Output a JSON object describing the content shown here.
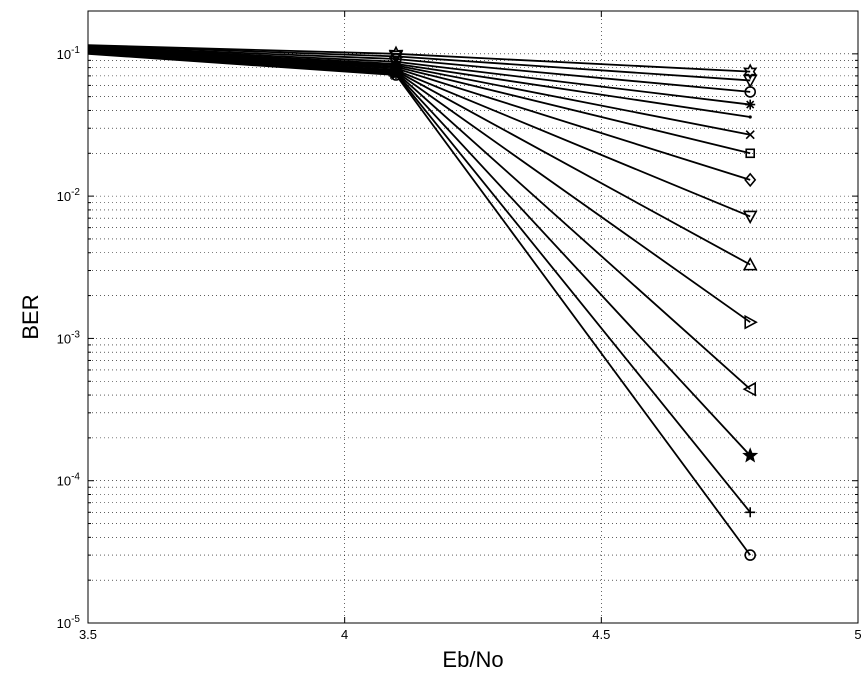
{
  "chart_data": {
    "type": "line",
    "title": "",
    "xlabel": "Eb/No",
    "ylabel": "BER",
    "xlim": [
      3.5,
      5
    ],
    "ylim": [
      1e-05,
      0.2
    ],
    "yscale": "log",
    "grid": true,
    "x_ticks": [
      {
        "value": 3.5,
        "label": "3.5"
      },
      {
        "value": 4,
        "label": "4"
      },
      {
        "value": 4.5,
        "label": "4.5"
      },
      {
        "value": 5,
        "label": "5"
      }
    ],
    "y_ticks": [
      {
        "value": 1e-05,
        "base": "10",
        "exp": "-5"
      },
      {
        "value": 0.0001,
        "base": "10",
        "exp": "-4"
      },
      {
        "value": 0.001,
        "base": "10",
        "exp": "-3"
      },
      {
        "value": 0.01,
        "base": "10",
        "exp": "-2"
      },
      {
        "value": 0.1,
        "base": "10",
        "exp": "-1"
      }
    ],
    "line_color": "#000000",
    "series": [
      {
        "marker": "hexagram",
        "x": [
          3.5,
          4.1,
          4.79
        ],
        "y": [
          0.115,
          0.1,
          0.075
        ]
      },
      {
        "marker": "triangle-down",
        "x": [
          3.5,
          4.1,
          4.79
        ],
        "y": [
          0.114,
          0.096,
          0.065
        ]
      },
      {
        "marker": "circle",
        "x": [
          3.5,
          4.1,
          4.79
        ],
        "y": [
          0.112,
          0.092,
          0.054
        ]
      },
      {
        "marker": "asterisk",
        "x": [
          3.5,
          4.1,
          4.79
        ],
        "y": [
          0.111,
          0.088,
          0.044
        ]
      },
      {
        "marker": "point",
        "x": [
          3.5,
          4.1,
          4.79
        ],
        "y": [
          0.11,
          0.085,
          0.036
        ]
      },
      {
        "marker": "x",
        "x": [
          3.5,
          4.1,
          4.79
        ],
        "y": [
          0.109,
          0.083,
          0.027
        ]
      },
      {
        "marker": "square",
        "x": [
          3.5,
          4.1,
          4.79
        ],
        "y": [
          0.108,
          0.081,
          0.02
        ]
      },
      {
        "marker": "diamond",
        "x": [
          3.5,
          4.1,
          4.79
        ],
        "y": [
          0.107,
          0.079,
          0.013
        ]
      },
      {
        "marker": "triangle-down",
        "x": [
          3.5,
          4.1,
          4.79
        ],
        "y": [
          0.106,
          0.077,
          0.0072
        ]
      },
      {
        "marker": "triangle-up",
        "x": [
          3.5,
          4.1,
          4.79
        ],
        "y": [
          0.105,
          0.076,
          0.0033
        ]
      },
      {
        "marker": "triangle-right",
        "x": [
          3.5,
          4.1,
          4.79
        ],
        "y": [
          0.104,
          0.075,
          0.0013
        ]
      },
      {
        "marker": "triangle-left",
        "x": [
          3.5,
          4.1,
          4.79
        ],
        "y": [
          0.103,
          0.074,
          0.00044
        ]
      },
      {
        "marker": "pentagram",
        "x": [
          3.5,
          4.1,
          4.79
        ],
        "y": [
          0.102,
          0.073,
          0.00015
        ]
      },
      {
        "marker": "plus",
        "x": [
          3.5,
          4.1,
          4.79
        ],
        "y": [
          0.101,
          0.072,
          6e-05
        ]
      },
      {
        "marker": "circle",
        "x": [
          3.5,
          4.1,
          4.79
        ],
        "y": [
          0.1,
          0.071,
          3e-05
        ]
      }
    ]
  }
}
